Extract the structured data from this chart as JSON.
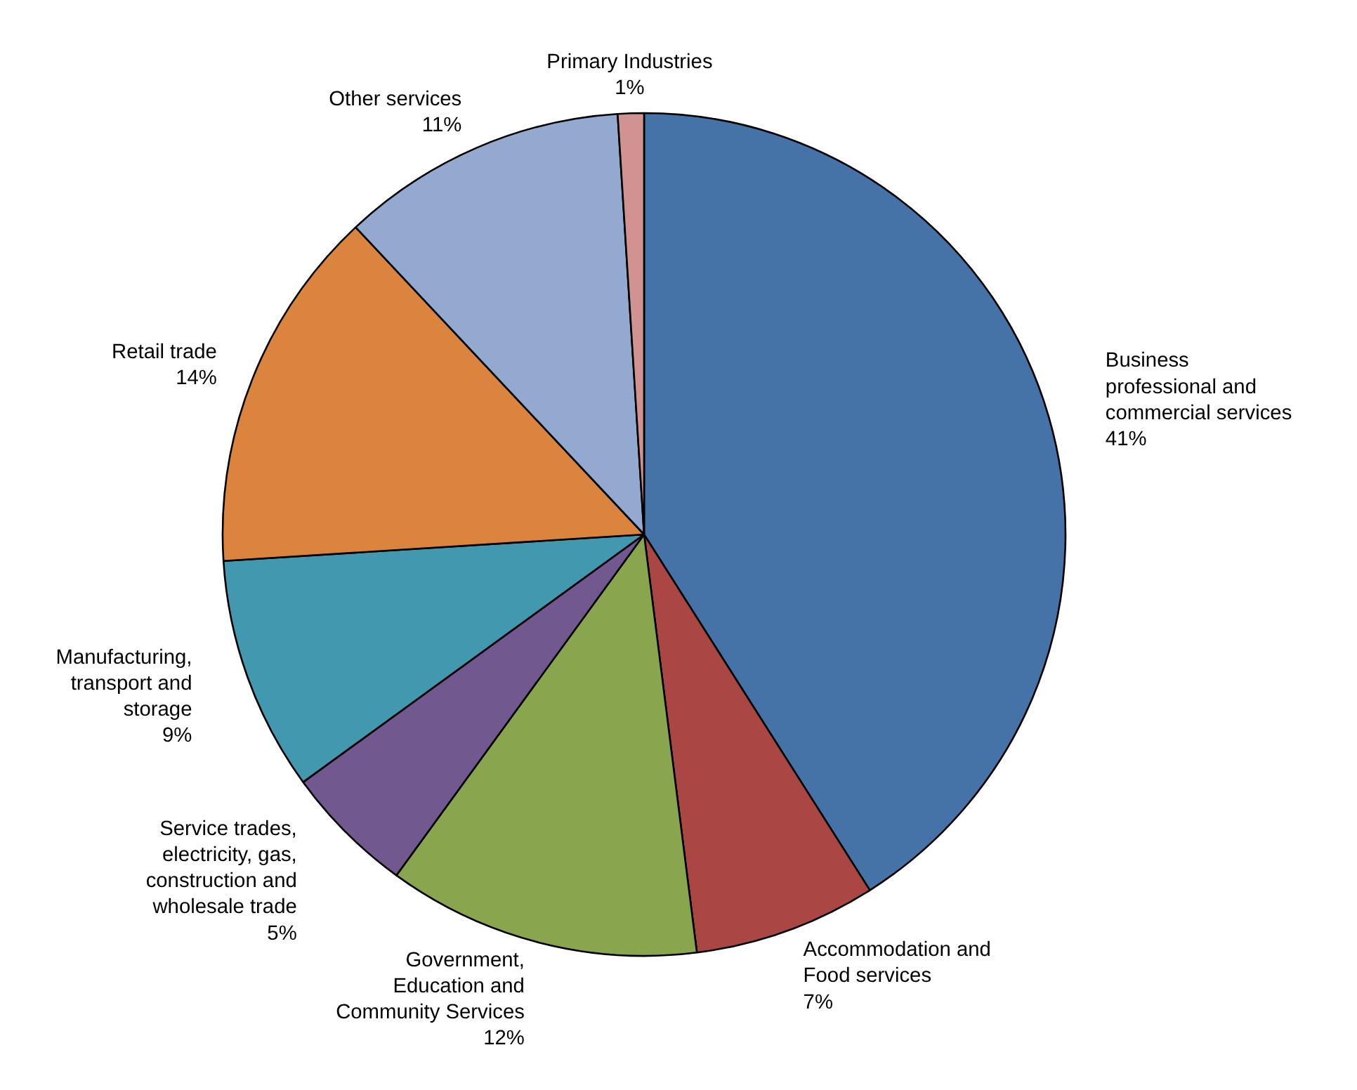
{
  "chart_data": {
    "type": "pie",
    "categories": [
      "Business professional and commercial services",
      "Accommodation and Food services",
      "Government, Education and Community Services",
      "Service trades, electricity, gas, construction and wholesale trade",
      "Manufacturing, transport and storage",
      "Retail trade",
      "Other services",
      "Primary Industries"
    ],
    "values": [
      41,
      7,
      12,
      5,
      9,
      14,
      11,
      1
    ],
    "value_labels": [
      "41%",
      "7%",
      "12%",
      "5%",
      "9%",
      "14%",
      "11%",
      "1%"
    ],
    "colors": [
      "#4572a7",
      "#aa4643",
      "#89a54e",
      "#71588f",
      "#4198af",
      "#db843d",
      "#93a9cf",
      "#d19392"
    ]
  }
}
